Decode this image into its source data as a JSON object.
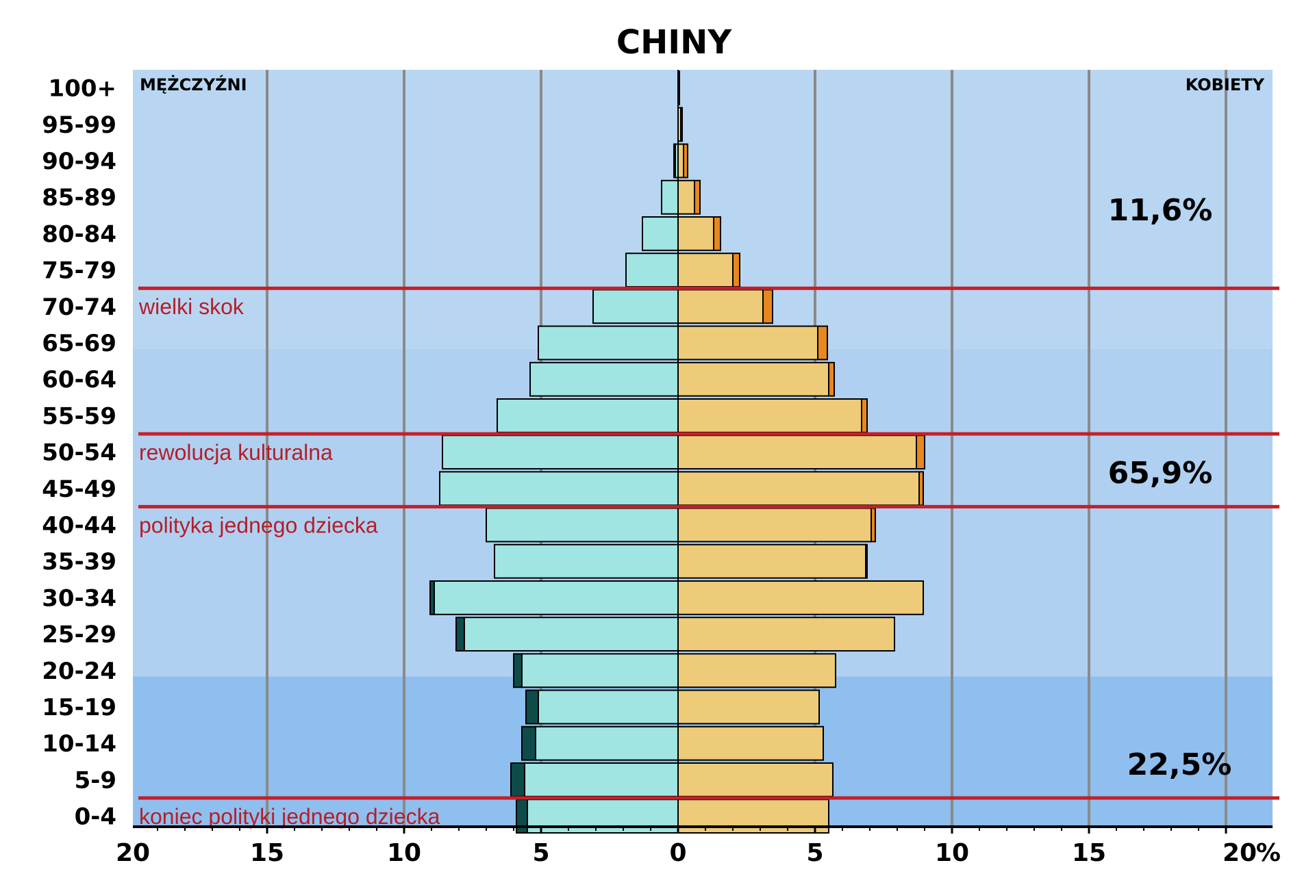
{
  "chart_data": {
    "type": "population-pyramid",
    "title": "CHINY",
    "left_label": "MĘŻCZYŹNI",
    "right_label": "KOBIETY",
    "unit": "%",
    "xlim": [
      0,
      20
    ],
    "x_ticks": [
      "20",
      "15",
      "10",
      "5",
      "0",
      "5",
      "10",
      "15",
      "20"
    ],
    "age_groups": [
      "100+",
      "95-99",
      "90-94",
      "85-89",
      "80-84",
      "75-79",
      "70-74",
      "65-69",
      "60-64",
      "55-59",
      "50-54",
      "45-49",
      "40-44",
      "35-39",
      "30-34",
      "25-29",
      "20-24",
      "15-19",
      "10-14",
      "5-9",
      "0-4"
    ],
    "male_common": [
      0,
      0,
      0.1,
      0.6,
      1.3,
      1.9,
      3.1,
      5.1,
      5.4,
      6.6,
      8.6,
      8.7,
      7.0,
      6.7,
      8.9,
      7.8,
      5.7,
      5.1,
      5.2,
      5.6,
      5.5
    ],
    "male_excess": [
      0,
      0,
      0.05,
      0,
      0,
      0,
      0,
      0,
      0,
      0,
      0,
      0,
      0,
      0,
      0.15,
      0.3,
      0.3,
      0.45,
      0.5,
      0.5,
      0.4
    ],
    "female_common": [
      0.05,
      0.1,
      0.2,
      0.6,
      1.3,
      2.0,
      3.1,
      5.1,
      5.5,
      6.7,
      8.7,
      8.8,
      7.05,
      6.85,
      8.95,
      7.9,
      5.75,
      5.15,
      5.3,
      5.65,
      5.5
    ],
    "female_excess": [
      0,
      0.05,
      0.15,
      0.2,
      0.25,
      0.25,
      0.35,
      0.35,
      0.2,
      0.2,
      0.3,
      0.15,
      0.15,
      0.05,
      0,
      0,
      0,
      0,
      0,
      0,
      0
    ],
    "events": [
      {
        "label": "wielki skok",
        "boundary": "70-74/75-79"
      },
      {
        "label": "rewolucja kulturalna",
        "boundary": "50-54/55-59"
      },
      {
        "label": "polityka jednego dziecka",
        "boundary": "40-44/45-49"
      },
      {
        "label": "koniec polityki jednego dziecka",
        "boundary": "0-4/5-9"
      }
    ],
    "group_shares": [
      {
        "label": "11,6%",
        "range": "65+"
      },
      {
        "label": "65,9%",
        "range": "15-64"
      },
      {
        "label": "22,5%",
        "range": "0-14"
      }
    ],
    "colors": {
      "bg_old": "#b8d6f2",
      "bg_working": "#afd0f1",
      "bg_young": "#8fbfee",
      "male_bar": "#a1e5e2",
      "male_excess": "#0e4c4a",
      "female_bar": "#eecb78",
      "female_excess": "#e8871e",
      "gridline": "#8a8a8a",
      "event_line": "#c41f2a",
      "event_text": "#b81d28"
    }
  }
}
